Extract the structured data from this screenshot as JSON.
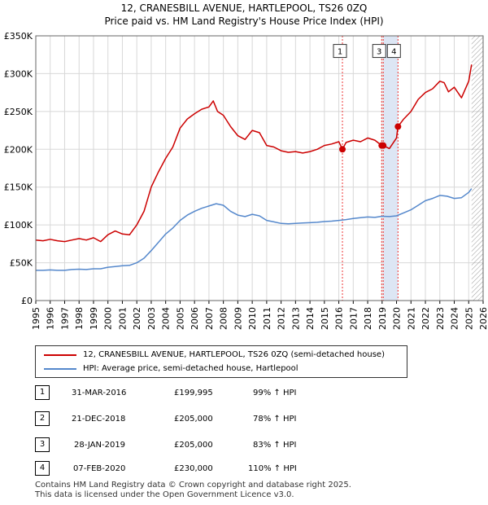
{
  "title": "12, CRANESBILL AVENUE, HARTLEPOOL, TS26 0ZQ",
  "subtitle": "Price paid vs. HM Land Registry's House Price Index (HPI)",
  "colors": {
    "property": "#cc0000",
    "hpi": "#5588cc",
    "shade": "#dde6f4",
    "marker_line": "#ee3333",
    "grid": "#d8d8d8"
  },
  "chart_data": {
    "type": "line",
    "ylim": [
      0,
      350000
    ],
    "xlim": [
      1995,
      2026
    ],
    "yticks": [
      {
        "value": 0,
        "label": "£0"
      },
      {
        "value": 50000,
        "label": "£50K"
      },
      {
        "value": 100000,
        "label": "£100K"
      },
      {
        "value": 150000,
        "label": "£150K"
      },
      {
        "value": 200000,
        "label": "£200K"
      },
      {
        "value": 250000,
        "label": "£250K"
      },
      {
        "value": 300000,
        "label": "£300K"
      },
      {
        "value": 350000,
        "label": "£350K"
      }
    ],
    "xticks": [
      "1995",
      "1996",
      "1997",
      "1998",
      "1999",
      "2000",
      "2001",
      "2002",
      "2003",
      "2004",
      "2005",
      "2006",
      "2007",
      "2008",
      "2009",
      "2010",
      "2011",
      "2012",
      "2013",
      "2014",
      "2015",
      "2016",
      "2017",
      "2018",
      "2019",
      "2020",
      "2021",
      "2022",
      "2023",
      "2024",
      "2025",
      "2026"
    ],
    "shaded_range": [
      2019.08,
      2020.1
    ],
    "future_hatch_from": 2025.2,
    "series": [
      {
        "name": "12, CRANESBILL AVENUE, HARTLEPOOL, TS26 0ZQ (semi-detached house)",
        "color": "#cc0000",
        "x": [
          1995,
          1995.5,
          1996,
          1996.5,
          1997,
          1997.5,
          1998,
          1998.5,
          1999,
          1999.5,
          2000,
          2000.5,
          2001,
          2001.5,
          2002,
          2002.5,
          2003,
          2003.5,
          2004,
          2004.5,
          2005,
          2005.5,
          2006,
          2006.5,
          2007,
          2007.3,
          2007.6,
          2008,
          2008.5,
          2009,
          2009.5,
          2010,
          2010.5,
          2011,
          2011.5,
          2012,
          2012.5,
          2013,
          2013.5,
          2014,
          2014.5,
          2015,
          2015.5,
          2016,
          2016.25,
          2016.5,
          2017,
          2017.5,
          2018,
          2018.5,
          2018.97,
          2019.08,
          2019.5,
          2020,
          2020.1,
          2020.5,
          2021,
          2021.5,
          2022,
          2022.5,
          2023,
          2023.3,
          2023.6,
          2024,
          2024.5,
          2025,
          2025.2
        ],
        "values": [
          80000,
          79000,
          81000,
          79000,
          78000,
          80000,
          82000,
          80000,
          83000,
          78000,
          87000,
          92000,
          88000,
          87000,
          100000,
          118000,
          150000,
          170000,
          188000,
          203000,
          228000,
          240000,
          247000,
          253000,
          256000,
          264000,
          250000,
          245000,
          230000,
          218000,
          213000,
          225000,
          222000,
          205000,
          203000,
          198000,
          196000,
          197000,
          195000,
          197000,
          200000,
          205000,
          207000,
          210000,
          199995,
          209000,
          212000,
          210000,
          215000,
          212000,
          205000,
          205000,
          201000,
          215000,
          230000,
          240000,
          250000,
          266000,
          275000,
          280000,
          290000,
          288000,
          276000,
          282000,
          268000,
          290000,
          312000
        ]
      },
      {
        "name": "HPI: Average price, semi-detached house, Hartlepool",
        "color": "#5588cc",
        "x": [
          1995,
          1995.5,
          1996,
          1996.5,
          1997,
          1997.5,
          1998,
          1998.5,
          1999,
          1999.5,
          2000,
          2000.5,
          2001,
          2001.5,
          2002,
          2002.5,
          2003,
          2003.5,
          2004,
          2004.5,
          2005,
          2005.5,
          2006,
          2006.5,
          2007,
          2007.5,
          2008,
          2008.5,
          2009,
          2009.5,
          2010,
          2010.5,
          2011,
          2011.5,
          2012,
          2012.5,
          2013,
          2013.5,
          2014,
          2014.5,
          2015,
          2015.5,
          2016,
          2016.5,
          2017,
          2017.5,
          2018,
          2018.5,
          2019,
          2019.5,
          2020,
          2020.5,
          2021,
          2021.5,
          2022,
          2022.5,
          2023,
          2023.5,
          2024,
          2024.5,
          2025,
          2025.2
        ],
        "values": [
          40000,
          40000,
          40500,
          40000,
          40000,
          41000,
          41500,
          41000,
          42000,
          42000,
          44000,
          45000,
          46000,
          46500,
          50000,
          56000,
          66000,
          77000,
          88000,
          96000,
          106000,
          113000,
          118000,
          122000,
          125000,
          128000,
          126000,
          118000,
          113000,
          111000,
          114000,
          112000,
          106000,
          104000,
          102000,
          101500,
          102000,
          102500,
          103000,
          103500,
          104500,
          105000,
          106000,
          107000,
          108500,
          109500,
          110500,
          110000,
          111500,
          111000,
          112000,
          116000,
          120000,
          126000,
          132000,
          135000,
          139000,
          138000,
          135000,
          136000,
          143000,
          148000
        ]
      }
    ],
    "markers": [
      {
        "id": "1",
        "x": 2016.25,
        "value": 199995,
        "label_y": 330000
      },
      {
        "id": "2",
        "x": 2018.97,
        "value": 205000,
        "label_y": 330000
      },
      {
        "id": "3",
        "x": 2019.08,
        "value": 205000,
        "label_y": 330000
      },
      {
        "id": "4",
        "x": 2020.1,
        "value": 230000,
        "label_y": 330000
      }
    ]
  },
  "legend": {
    "property_label": "12, CRANESBILL AVENUE, HARTLEPOOL, TS26 0ZQ (semi-detached house)",
    "hpi_label": "HPI: Average price, semi-detached house, Hartlepool"
  },
  "table": [
    {
      "id": "1",
      "date": "31-MAR-2016",
      "price": "£199,995",
      "pct": "99% ↑ HPI"
    },
    {
      "id": "2",
      "date": "21-DEC-2018",
      "price": "£205,000",
      "pct": "78% ↑ HPI"
    },
    {
      "id": "3",
      "date": "28-JAN-2019",
      "price": "£205,000",
      "pct": "83% ↑ HPI"
    },
    {
      "id": "4",
      "date": "07-FEB-2020",
      "price": "£230,000",
      "pct": "110% ↑ HPI"
    }
  ],
  "footer": {
    "line1": "Contains HM Land Registry data © Crown copyright and database right 2025.",
    "line2": "This data is licensed under the Open Government Licence v3.0."
  }
}
